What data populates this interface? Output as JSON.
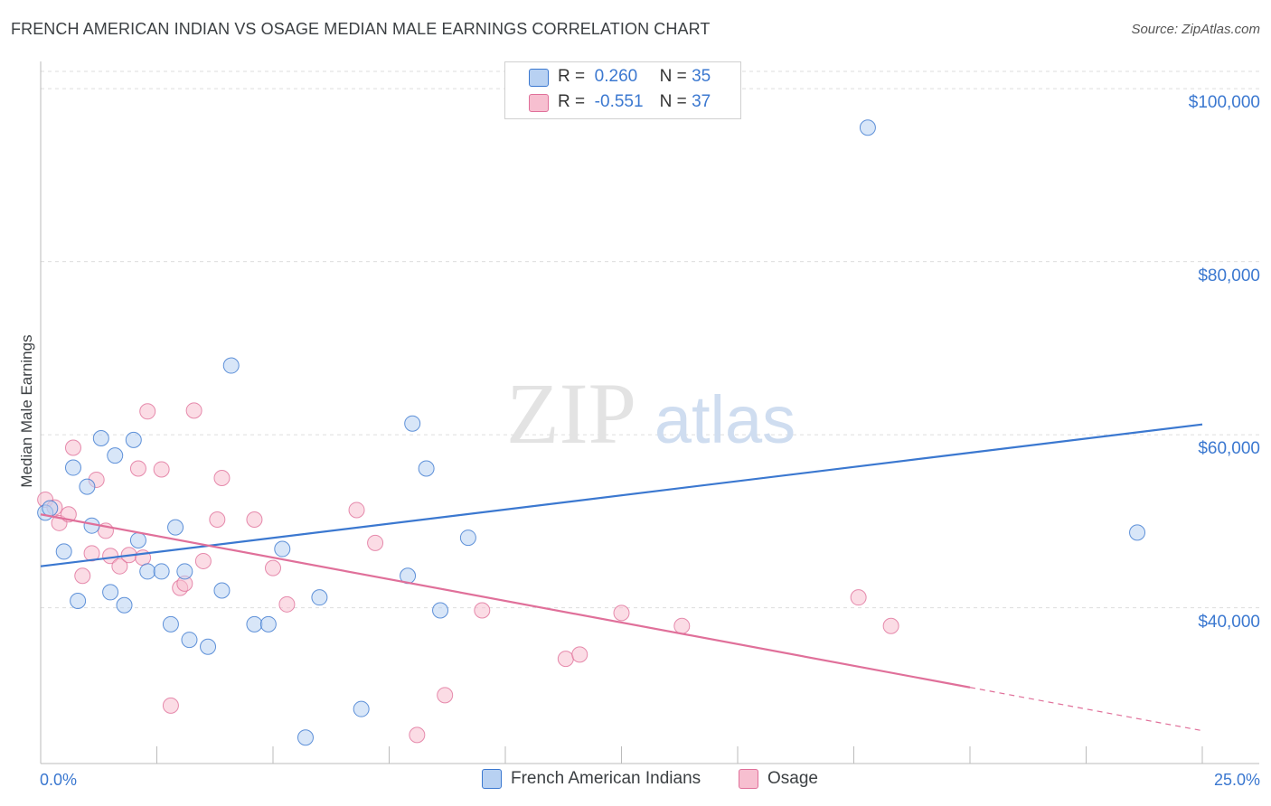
{
  "title": "FRENCH AMERICAN INDIAN VS OSAGE MEDIAN MALE EARNINGS CORRELATION CHART",
  "source": "Source: ZipAtlas.com",
  "watermark": {
    "zip": "ZIP",
    "atlas": "atlas"
  },
  "colors": {
    "blue": "#3b78d0",
    "blue_fill": "#b8d1f2",
    "pink": "#e0709a",
    "pink_fill": "#f7bfd0",
    "grid": "#dddddd"
  },
  "legend": {
    "r_label": "R =",
    "n_label": "N =",
    "entries": [
      {
        "r": "0.260",
        "n": "35"
      },
      {
        "r": "-0.551",
        "n": "37"
      }
    ]
  },
  "bottom_legend": [
    "French American Indians",
    "Osage"
  ],
  "chart_data": {
    "type": "scatter",
    "title": "FRENCH AMERICAN INDIAN VS OSAGE MEDIAN MALE EARNINGS CORRELATION CHART",
    "xlabel": "",
    "ylabel": "Median Male Earnings",
    "xlim": [
      0,
      25
    ],
    "ylim": [
      22000,
      102000
    ],
    "x_tick_labels": [
      "0.0%",
      "25.0%"
    ],
    "y_ticks": [
      {
        "value": 40000,
        "label": "$40,000"
      },
      {
        "value": 60000,
        "label": "$60,000"
      },
      {
        "value": 80000,
        "label": "$80,000"
      },
      {
        "value": 100000,
        "label": "$100,000"
      }
    ],
    "series": [
      {
        "name": "French American Indians",
        "r": 0.26,
        "n": 35,
        "trend": {
          "x": [
            0,
            25
          ],
          "y": [
            44800,
            61200
          ]
        },
        "points": [
          [
            0.1,
            51000
          ],
          [
            0.2,
            51500
          ],
          [
            0.5,
            46500
          ],
          [
            0.7,
            56200
          ],
          [
            0.8,
            40800
          ],
          [
            1.0,
            54000
          ],
          [
            1.1,
            49500
          ],
          [
            1.3,
            59600
          ],
          [
            1.5,
            41800
          ],
          [
            1.6,
            57600
          ],
          [
            1.8,
            40300
          ],
          [
            2.0,
            59400
          ],
          [
            2.1,
            47800
          ],
          [
            2.3,
            44200
          ],
          [
            2.6,
            44200
          ],
          [
            2.8,
            38100
          ],
          [
            2.9,
            49300
          ],
          [
            3.1,
            44200
          ],
          [
            3.2,
            36300
          ],
          [
            3.6,
            35500
          ],
          [
            3.9,
            42000
          ],
          [
            4.1,
            68000
          ],
          [
            4.6,
            38100
          ],
          [
            4.9,
            38100
          ],
          [
            5.2,
            46800
          ],
          [
            5.7,
            25000
          ],
          [
            6.0,
            41200
          ],
          [
            6.9,
            28300
          ],
          [
            7.9,
            43700
          ],
          [
            8.0,
            61300
          ],
          [
            8.3,
            56100
          ],
          [
            8.6,
            39700
          ],
          [
            9.2,
            48100
          ],
          [
            17.8,
            95500
          ],
          [
            23.6,
            48700
          ]
        ]
      },
      {
        "name": "Osage",
        "r": -0.551,
        "n": 37,
        "trend": {
          "x": [
            0,
            20
          ],
          "y": [
            50800,
            30800
          ]
        },
        "trend_dashed": {
          "x": [
            20,
            25
          ],
          "y": [
            30800,
            25800
          ]
        },
        "points": [
          [
            0.1,
            52500
          ],
          [
            0.3,
            51600
          ],
          [
            0.4,
            49800
          ],
          [
            0.6,
            50800
          ],
          [
            0.7,
            58500
          ],
          [
            0.9,
            43700
          ],
          [
            1.1,
            46300
          ],
          [
            1.2,
            54800
          ],
          [
            1.4,
            48900
          ],
          [
            1.5,
            46000
          ],
          [
            1.7,
            44800
          ],
          [
            1.9,
            46100
          ],
          [
            2.1,
            56100
          ],
          [
            2.2,
            45800
          ],
          [
            2.3,
            62700
          ],
          [
            2.6,
            56000
          ],
          [
            2.8,
            28700
          ],
          [
            3.0,
            42300
          ],
          [
            3.1,
            42800
          ],
          [
            3.3,
            62800
          ],
          [
            3.5,
            45400
          ],
          [
            3.9,
            55000
          ],
          [
            3.8,
            50200
          ],
          [
            4.6,
            50200
          ],
          [
            5.0,
            44600
          ],
          [
            5.3,
            40400
          ],
          [
            6.8,
            51300
          ],
          [
            7.2,
            47500
          ],
          [
            8.1,
            25300
          ],
          [
            8.7,
            29900
          ],
          [
            9.5,
            39700
          ],
          [
            11.3,
            34100
          ],
          [
            11.6,
            34600
          ],
          [
            12.5,
            39400
          ],
          [
            13.8,
            37900
          ],
          [
            17.6,
            41200
          ],
          [
            18.3,
            37900
          ]
        ]
      }
    ]
  }
}
